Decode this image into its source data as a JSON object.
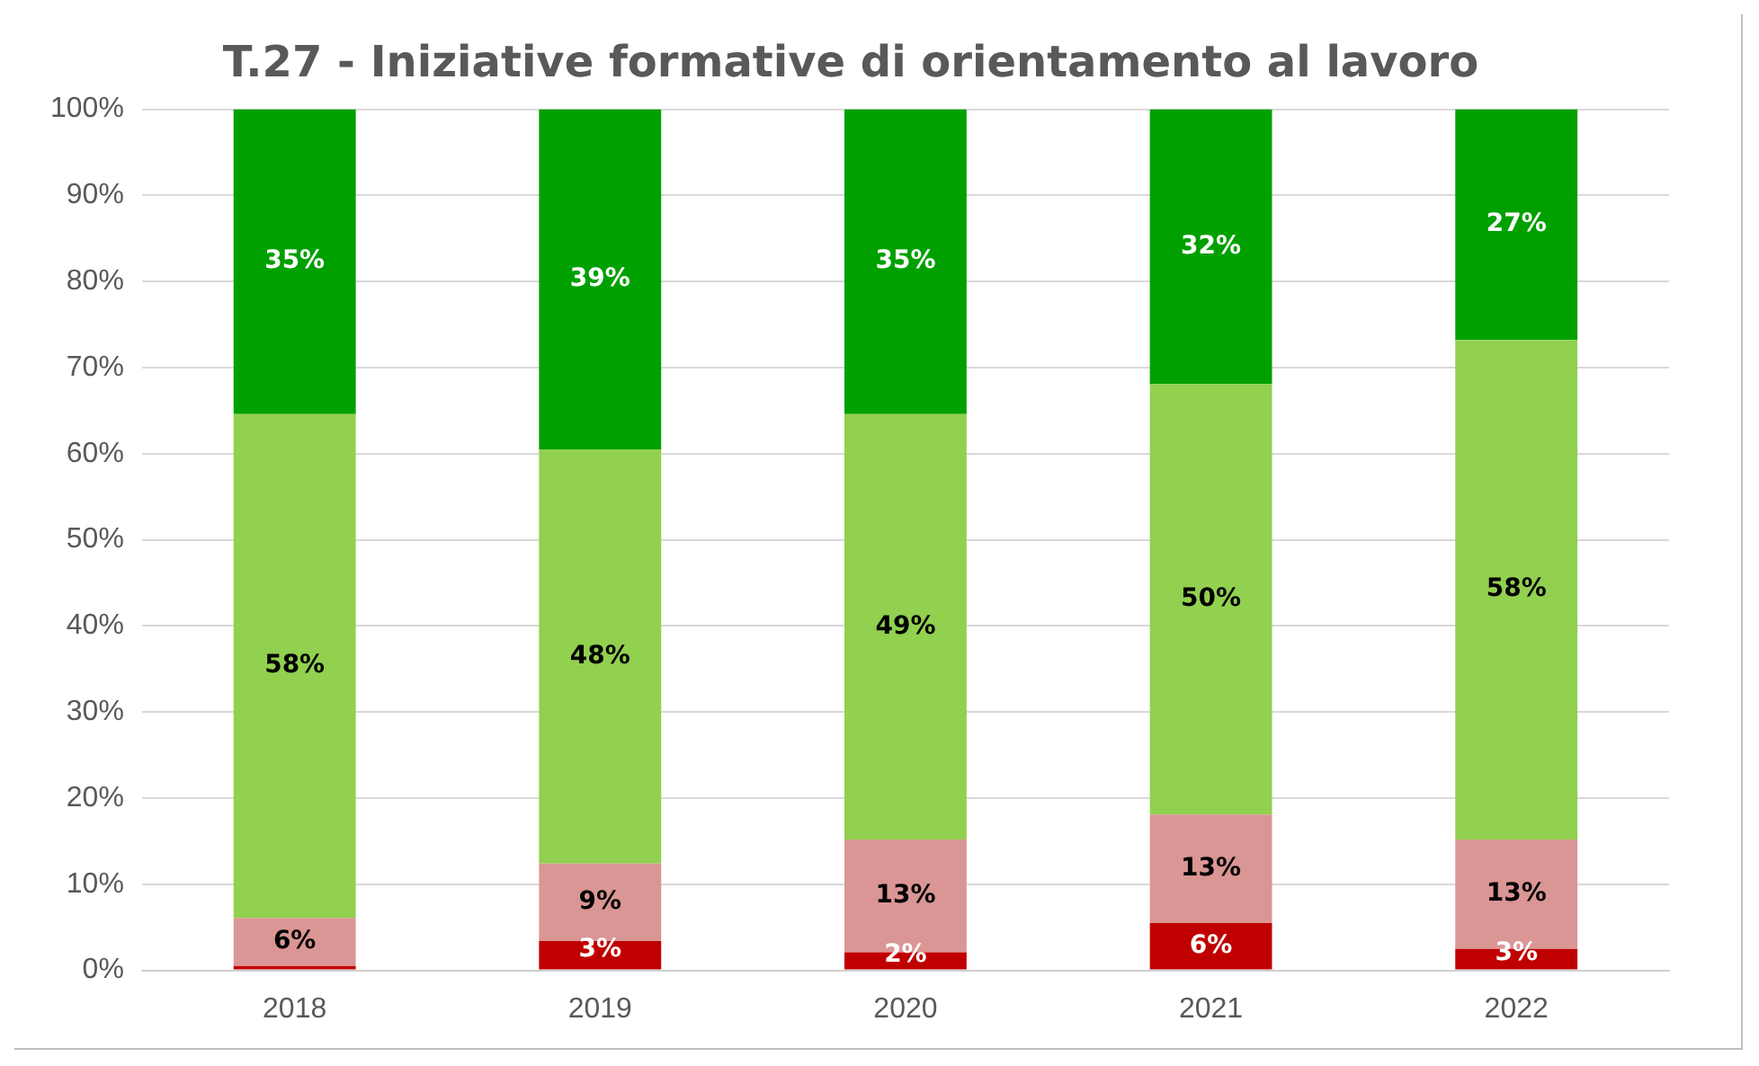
{
  "chart_data": {
    "type": "bar",
    "title": "T.27 - Iniziative formative di orientamento al lavoro",
    "stacked": true,
    "categories": [
      "2018",
      "2019",
      "2020",
      "2021",
      "2022"
    ],
    "series": [
      {
        "color": "#c00000",
        "values": [
          0.5,
          3.4,
          2.1,
          5.5,
          2.5
        ],
        "value_labels": [
          null,
          "3%",
          "2%",
          "6%",
          "3%"
        ]
      },
      {
        "color": "#da9694",
        "values": [
          5.6,
          9,
          13.1,
          12.6,
          12.7
        ],
        "value_labels": [
          "6%",
          "9%",
          "13%",
          "13%",
          "13%"
        ]
      },
      {
        "color": "#92d050",
        "values": [
          58.5,
          48.1,
          49.4,
          50,
          58
        ],
        "value_labels": [
          "58%",
          "48%",
          "49%",
          "50%",
          "58%"
        ]
      },
      {
        "color": "#00a000",
        "values": [
          35.4,
          39.5,
          35.4,
          31.9,
          26.8
        ],
        "value_labels": [
          "35%",
          "39%",
          "35%",
          "32%",
          "27%"
        ]
      }
    ],
    "ylim": [
      0,
      100
    ],
    "yticks": [
      {
        "value": 0,
        "label": "0%"
      },
      {
        "value": 10,
        "label": "10%"
      },
      {
        "value": 20,
        "label": "20%"
      },
      {
        "value": 30,
        "label": "30%"
      },
      {
        "value": 40,
        "label": "40%"
      },
      {
        "value": 50,
        "label": "50%"
      },
      {
        "value": 60,
        "label": "60%"
      },
      {
        "value": 70,
        "label": "70%"
      },
      {
        "value": 80,
        "label": "80%"
      },
      {
        "value": 90,
        "label": "90%"
      },
      {
        "value": 100,
        "label": "100%"
      }
    ],
    "grid": "y",
    "legend": false
  }
}
